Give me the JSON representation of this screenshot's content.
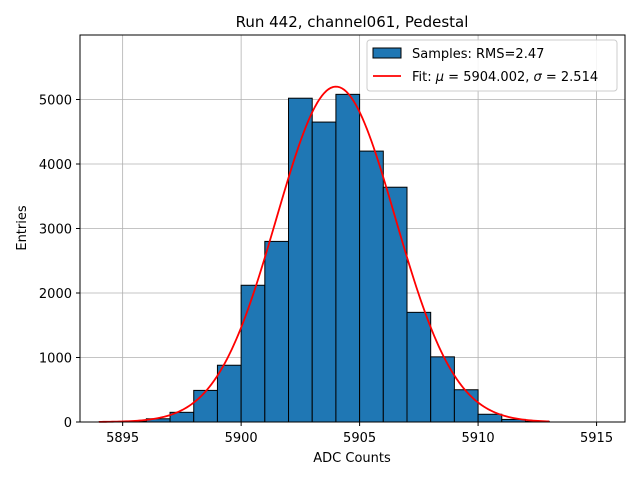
{
  "chart_data": {
    "type": "bar",
    "title": "Run 442, channel061, Pedestal",
    "xlabel": "ADC Counts",
    "ylabel": "Entries",
    "xlim": [
      5893.2,
      5916.2
    ],
    "ylim": [
      0,
      6000
    ],
    "xticks": [
      5895,
      5900,
      5905,
      5910,
      5915
    ],
    "yticks": [
      0,
      1000,
      2000,
      3000,
      4000,
      5000
    ],
    "grid": true,
    "legend_position": "top-right",
    "histogram": {
      "bin_width": 1,
      "bins": [
        {
          "x0": 5894,
          "value": 3
        },
        {
          "x0": 5895,
          "value": 12
        },
        {
          "x0": 5896,
          "value": 50
        },
        {
          "x0": 5897,
          "value": 150
        },
        {
          "x0": 5898,
          "value": 490
        },
        {
          "x0": 5899,
          "value": 880
        },
        {
          "x0": 5900,
          "value": 2120
        },
        {
          "x0": 5901,
          "value": 2800
        },
        {
          "x0": 5902,
          "value": 5020
        },
        {
          "x0": 5903,
          "value": 4650
        },
        {
          "x0": 5904,
          "value": 5080
        },
        {
          "x0": 5905,
          "value": 4200
        },
        {
          "x0": 5906,
          "value": 3640
        },
        {
          "x0": 5907,
          "value": 1700
        },
        {
          "x0": 5908,
          "value": 1010
        },
        {
          "x0": 5909,
          "value": 500
        },
        {
          "x0": 5910,
          "value": 120
        },
        {
          "x0": 5911,
          "value": 40
        },
        {
          "x0": 5912,
          "value": 10
        }
      ],
      "color": "#1f77b4",
      "edge_color": "#000000"
    },
    "fit": {
      "mu": 5904.002,
      "sigma": 2.514,
      "amplitude": 5200,
      "x_range": [
        5894,
        5913
      ],
      "color": "#ff0000"
    },
    "legend": [
      {
        "label": "Samples: RMS=2.47",
        "kind": "patch"
      },
      {
        "label_prefix": "Fit: ",
        "mu_symbol": "μ",
        "mu_text": " = 5904.002, ",
        "sigma_symbol": "σ",
        "sigma_text": " = 2.514",
        "kind": "line"
      }
    ]
  }
}
